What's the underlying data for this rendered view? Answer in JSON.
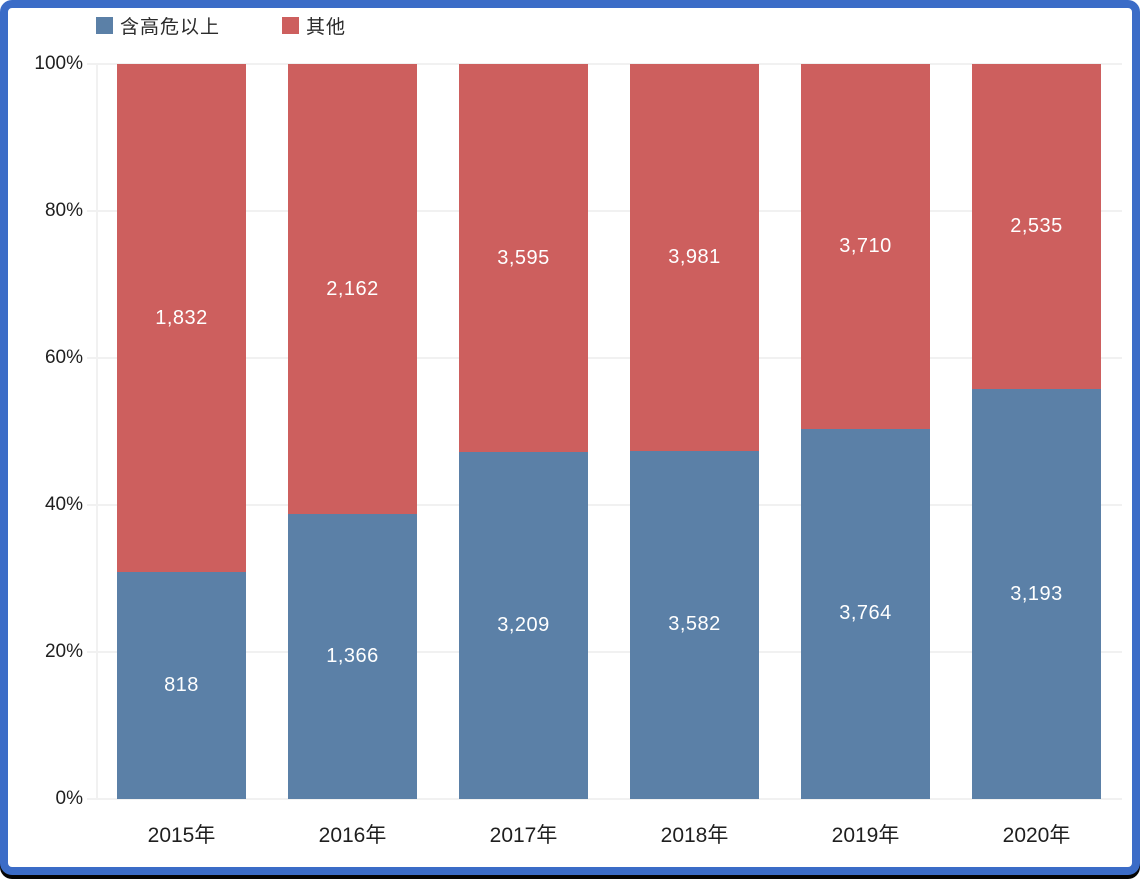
{
  "colors": {
    "series_blue": "#5b80a7",
    "series_red": "#cd5f5e",
    "frame_border": "#3b6cc7",
    "gridline": "#f1f1f1",
    "axis_text": "#1f1f1f",
    "bar_label_text": "#ffffff"
  },
  "legend": {
    "items": [
      {
        "label": "含高危以上",
        "color": "#5b80a7"
      },
      {
        "label": "其他",
        "color": "#cd5f5e"
      }
    ]
  },
  "chart_data": {
    "type": "bar",
    "stacked": true,
    "percent_normalized": true,
    "title": "",
    "xlabel": "",
    "ylabel": "",
    "categories": [
      "2015年",
      "2016年",
      "2017年",
      "2018年",
      "2019年",
      "2020年"
    ],
    "series": [
      {
        "name": "含高危以上",
        "color": "#5b80a7",
        "values": [
          818,
          1366,
          3209,
          3582,
          3764,
          3193
        ],
        "labels": [
          "818",
          "1,366",
          "3,209",
          "3,582",
          "3,764",
          "3,193"
        ]
      },
      {
        "name": "其他",
        "color": "#cd5f5e",
        "values": [
          1832,
          2162,
          3595,
          3981,
          3710,
          2535
        ],
        "labels": [
          "1,832",
          "2,162",
          "3,595",
          "3,981",
          "3,710",
          "2,535"
        ]
      }
    ],
    "y_axis": {
      "ticks_percent": [
        0,
        20,
        40,
        60,
        80,
        100
      ],
      "tick_labels": [
        "0%",
        "20%",
        "40%",
        "60%",
        "80%",
        "100%"
      ],
      "range": [
        0,
        100
      ],
      "grid": true
    },
    "legend_position": "top-left"
  }
}
